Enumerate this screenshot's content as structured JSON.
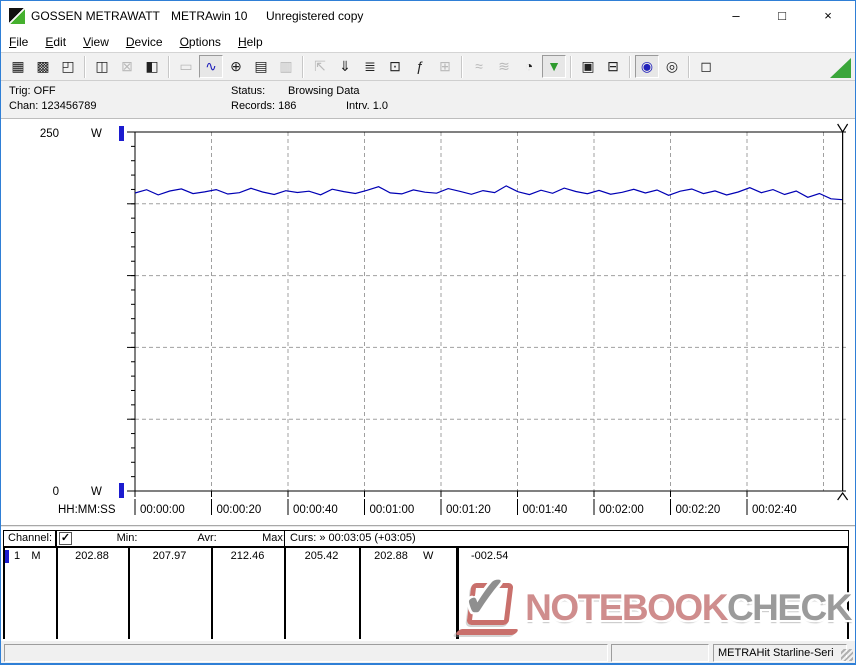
{
  "window": {
    "app_name": "GOSSEN METRAWATT",
    "program": "METRAwin 10",
    "license": "Unregistered copy",
    "controls": {
      "minimize": "–",
      "maximize": "□",
      "close": "×"
    }
  },
  "menu": {
    "items": [
      {
        "label": "File"
      },
      {
        "label": "Edit"
      },
      {
        "label": "View"
      },
      {
        "label": "Device"
      },
      {
        "label": "Options"
      },
      {
        "label": "Help"
      }
    ]
  },
  "toolbar": {
    "buttons": [
      {
        "name": "save-icon",
        "glyph": "▦",
        "state": "normal"
      },
      {
        "name": "save-as-icon",
        "glyph": "▩",
        "state": "normal"
      },
      {
        "name": "open-file-icon",
        "glyph": "◰",
        "state": "normal"
      },
      {
        "sep": true
      },
      {
        "name": "read-device-icon",
        "glyph": "◫",
        "state": "normal"
      },
      {
        "name": "clear-device-memory-icon",
        "glyph": "⊠",
        "state": "disabled"
      },
      {
        "name": "device-memory-icon",
        "glyph": "◧",
        "state": "normal"
      },
      {
        "sep": true
      },
      {
        "name": "digital-display-icon",
        "glyph": "▭",
        "state": "disabled"
      },
      {
        "name": "curve-display-icon",
        "glyph": "∿",
        "state": "pressed",
        "color": "#2222bb"
      },
      {
        "name": "crosshair-display-icon",
        "glyph": "⊕",
        "state": "normal"
      },
      {
        "name": "table-display-icon",
        "glyph": "▤",
        "state": "normal"
      },
      {
        "name": "histogram-display-icon",
        "glyph": "▥",
        "state": "disabled"
      },
      {
        "sep": true
      },
      {
        "name": "export-icon",
        "glyph": "⇱",
        "state": "disabled"
      },
      {
        "name": "store-to-disk-icon",
        "glyph": "⇓",
        "state": "normal"
      },
      {
        "name": "channel-setup-icon",
        "glyph": "≣",
        "state": "normal"
      },
      {
        "name": "monitor-icon",
        "glyph": "⊡",
        "state": "normal"
      },
      {
        "name": "formula-icon",
        "glyph": "ƒ",
        "state": "normal"
      },
      {
        "name": "send-to-device-icon",
        "glyph": "⊞",
        "state": "disabled"
      },
      {
        "sep": true
      },
      {
        "name": "minmax-curve-icon",
        "glyph": "≈",
        "state": "disabled"
      },
      {
        "name": "envelope-curve-icon",
        "glyph": "≋",
        "state": "disabled"
      },
      {
        "name": "timer-icon",
        "glyph": "◔",
        "state": "normal"
      },
      {
        "name": "trigger-icon",
        "glyph": "▼",
        "state": "pressed",
        "color": "#2e9b2e"
      },
      {
        "sep": true
      },
      {
        "name": "print-preview-icon",
        "glyph": "▣",
        "state": "normal"
      },
      {
        "name": "print-icon",
        "glyph": "⊟",
        "state": "normal"
      },
      {
        "sep": true
      },
      {
        "name": "zoom-curve-icon",
        "glyph": "◉",
        "state": "pressed",
        "color": "#2222bb"
      },
      {
        "name": "zoom-select-icon",
        "glyph": "◎",
        "state": "normal"
      },
      {
        "sep": true
      },
      {
        "name": "tooltip-icon",
        "glyph": "◻",
        "state": "normal"
      }
    ]
  },
  "info": {
    "trig": "Trig: OFF",
    "chan": "Chan: 123456789",
    "status_label": "Status:",
    "status_value": "Browsing Data",
    "records": "Records: 186",
    "interval": "Intrv. 1.0"
  },
  "chart_data": {
    "type": "line",
    "title": "",
    "ylabel": "W",
    "xlabel": "HH:MM:SS",
    "ylim": [
      0,
      250
    ],
    "y_max_label": "250",
    "y_min_label": "0",
    "unit": "W",
    "y_major_step": 50,
    "y_minor_step": 10,
    "grid": true,
    "hgrid_values": [
      50,
      100,
      150,
      200
    ],
    "x_grid_seconds": [
      20,
      40,
      60,
      80,
      100,
      120,
      140,
      160,
      180
    ],
    "x_tick_seconds": [
      0,
      20,
      40,
      60,
      80,
      100,
      120,
      140,
      160
    ],
    "x_tick_labels": [
      "00:00:00",
      "00:00:20",
      "00:00:40",
      "00:01:00",
      "00:01:20",
      "00:01:40",
      "00:02:00",
      "00:02:20",
      "00:02:40"
    ],
    "cursor": {
      "seconds": 185,
      "time_label": "00:03:05",
      "offset_label": "+03:05"
    },
    "series": [
      {
        "name": "Channel 1 (M)",
        "color": "#0000b4",
        "unit": "W",
        "min": 202.88,
        "avr": 207.97,
        "max": 212.46,
        "cursor_value": 202.88,
        "values": [
          207.5,
          209.8,
          206.2,
          208.9,
          210.4,
          207.1,
          208.3,
          209.9,
          206.8,
          207.7,
          210.8,
          208.2,
          206.5,
          209.1,
          207.9,
          208.8,
          206.3,
          210.2,
          208.5,
          207.2,
          209.4,
          211.9,
          207.6,
          206.9,
          209.7,
          208.1,
          207.4,
          210.6,
          208.7,
          206.6,
          209.2,
          207.8,
          212.46,
          208.4,
          206.4,
          209.5,
          207.3,
          210.9,
          208.6,
          207.0,
          209.3,
          206.7,
          208.0,
          210.1,
          207.5,
          209.6,
          205.9,
          208.8,
          210.3,
          207.1,
          209.0,
          206.1,
          208.2,
          211.2,
          207.7,
          209.9,
          206.5,
          208.9,
          204.5,
          207.2,
          203.5,
          202.88
        ]
      }
    ]
  },
  "table": {
    "header": {
      "channel": "Channel:",
      "checkbox_checked": true,
      "check_glyph": "✓",
      "min": "Min:",
      "avr": "Avr:",
      "max": "Max:",
      "curs": "Curs: » 00:03:05 (+03:05)"
    },
    "row": {
      "channel_num": "1",
      "channel_mode": "M",
      "min": "202.88",
      "avr": "207.97",
      "max": "212.46",
      "curs1": "205.42",
      "curs2": "202.88",
      "unit": "W",
      "delta": "-002.54"
    }
  },
  "watermark": {
    "part1": "NOTEBOOK",
    "part2": "CHECK",
    "check_glyph": "✓"
  },
  "statusbar": {
    "device": "METRAHit Starline-Seri"
  },
  "colors": {
    "window_border": "#2f7fd6",
    "series_blue": "#0000b4",
    "marker_blue": "#1c1ccf",
    "grid_gray": "#a0a0a0",
    "trigger_green": "#3aa63a",
    "watermark_red": "#cf8d8d",
    "watermark_gray": "#9b9b9b"
  }
}
